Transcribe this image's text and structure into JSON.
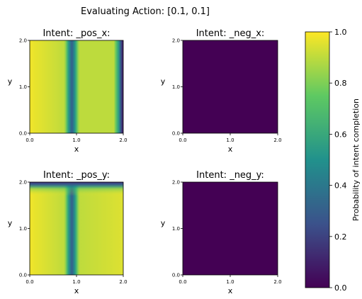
{
  "figure": {
    "suptitle": "Evaluating Action: [0.1, 0.1]"
  },
  "chart_data": {
    "type": "heatmap",
    "colormap": "viridis",
    "colormap_stops": [
      "#440154",
      "#3b528b",
      "#21918c",
      "#5ec962",
      "#fde725"
    ],
    "value_range": [
      0.0,
      1.0
    ],
    "grid": false,
    "colorbar": {
      "label": "Probability of intent completion",
      "ticks": [
        "0.0",
        "0.2",
        "0.4",
        "0.6",
        "0.8",
        "1.0"
      ],
      "tick_values": [
        0.0,
        0.2,
        0.4,
        0.6,
        0.8,
        1.0
      ],
      "placement": "right"
    },
    "panels": [
      {
        "title": "Intent: _pos_x:",
        "xlabel": "x",
        "ylabel": "y",
        "xlim": [
          0.0,
          2.0
        ],
        "ylim": [
          0.0,
          2.0
        ],
        "xticks": [
          "0.0",
          "1.0",
          "2.0"
        ],
        "yticks": [
          "0.0",
          "1.0",
          "2.0"
        ],
        "pattern": "Probability high (~1.0) everywhere except a low band near x≈0.9 and a low edge near x≈2.0",
        "profile_x": [
          0.0,
          0.75,
          0.85,
          0.9,
          0.95,
          1.05,
          1.8,
          1.9,
          1.95,
          2.0
        ],
        "profile_p": [
          0.98,
          0.9,
          0.45,
          0.3,
          0.45,
          0.9,
          0.9,
          0.55,
          0.25,
          0.05
        ]
      },
      {
        "title": "Intent: _neg_x:",
        "xlabel": "x",
        "ylabel": "y",
        "xlim": [
          0.0,
          2.0
        ],
        "ylim": [
          0.0,
          2.0
        ],
        "xticks": [
          "0.0",
          "1.0",
          "2.0"
        ],
        "yticks": [
          "0.0",
          "1.0",
          "2.0"
        ],
        "pattern": "Probability ~0.0 everywhere",
        "uniform_value": 0.0
      },
      {
        "title": "Intent: _pos_y:",
        "xlabel": "x",
        "ylabel": "y",
        "xlim": [
          0.0,
          2.0
        ],
        "ylim": [
          0.0,
          2.0
        ],
        "xticks": [
          "0.0",
          "1.0",
          "2.0"
        ],
        "yticks": [
          "0.0",
          "1.0",
          "2.0"
        ],
        "pattern": "Probability high (~1.0) except a low vertical band near x≈0.9 and a low strip near y≈2.0",
        "profile_x": [
          0.0,
          0.75,
          0.85,
          0.9,
          0.95,
          1.05,
          2.0
        ],
        "profile_p": [
          0.98,
          0.9,
          0.45,
          0.3,
          0.45,
          0.9,
          0.95
        ],
        "profile_y": [
          0.0,
          1.7,
          1.85,
          1.93,
          2.0
        ],
        "profile_py": [
          1.0,
          1.0,
          0.7,
          0.35,
          0.15
        ]
      },
      {
        "title": "Intent: _neg_y:",
        "xlabel": "x",
        "ylabel": "y",
        "xlim": [
          0.0,
          2.0
        ],
        "ylim": [
          0.0,
          2.0
        ],
        "xticks": [
          "0.0",
          "1.0",
          "2.0"
        ],
        "yticks": [
          "0.0",
          "1.0",
          "2.0"
        ],
        "pattern": "Probability ~0.0 everywhere",
        "uniform_value": 0.0
      }
    ]
  }
}
